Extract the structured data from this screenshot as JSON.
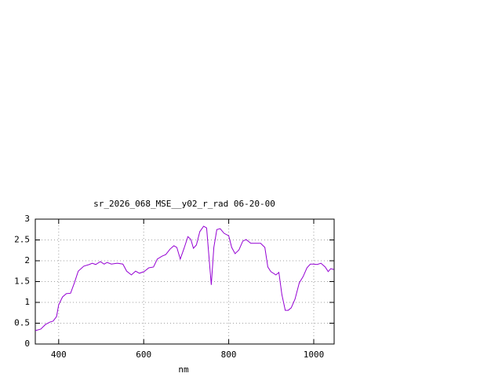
{
  "chart_data": {
    "type": "line",
    "title": "sr_2026_068_MSE__y02_r_rad 06-20-00",
    "x_label": "nm",
    "x": [
      345,
      358,
      369,
      380,
      387,
      395,
      400,
      409,
      418,
      428,
      437,
      446,
      459,
      472,
      479,
      487,
      498,
      507,
      514,
      524,
      538,
      551,
      560,
      571,
      581,
      590,
      601,
      612,
      623,
      632,
      643,
      652,
      662,
      671,
      678,
      686,
      695,
      704,
      711,
      717,
      724,
      732,
      741,
      748,
      754,
      759,
      765,
      772,
      780,
      789,
      800,
      807,
      815,
      824,
      833,
      841,
      852,
      863,
      875,
      885,
      892,
      899,
      911,
      918,
      925,
      933,
      940,
      947,
      956,
      966,
      975,
      984,
      992,
      999,
      1008,
      1017,
      1027,
      1034,
      1040,
      1047
    ],
    "values": [
      0.32,
      0.36,
      0.47,
      0.53,
      0.55,
      0.66,
      0.94,
      1.13,
      1.21,
      1.22,
      1.47,
      1.75,
      1.87,
      1.91,
      1.94,
      1.91,
      1.98,
      1.92,
      1.96,
      1.92,
      1.94,
      1.92,
      1.75,
      1.66,
      1.75,
      1.7,
      1.74,
      1.83,
      1.85,
      2.04,
      2.11,
      2.15,
      2.28,
      2.36,
      2.32,
      2.04,
      2.3,
      2.58,
      2.51,
      2.3,
      2.38,
      2.7,
      2.83,
      2.79,
      2.04,
      1.42,
      2.32,
      2.75,
      2.77,
      2.66,
      2.6,
      2.32,
      2.17,
      2.26,
      2.47,
      2.51,
      2.42,
      2.42,
      2.42,
      2.32,
      1.85,
      1.74,
      1.66,
      1.72,
      1.19,
      0.81,
      0.81,
      0.87,
      1.08,
      1.47,
      1.62,
      1.83,
      1.92,
      1.92,
      1.91,
      1.94,
      1.85,
      1.74,
      1.81,
      1.79
    ],
    "color": "#9400d3",
    "xlim": [
      345,
      1048
    ],
    "xticks": [
      400,
      600,
      800,
      1000
    ],
    "ylim": [
      0,
      3
    ],
    "yticks": [
      0,
      0.5,
      1,
      1.5,
      2,
      2.5,
      3
    ],
    "grid": true
  }
}
